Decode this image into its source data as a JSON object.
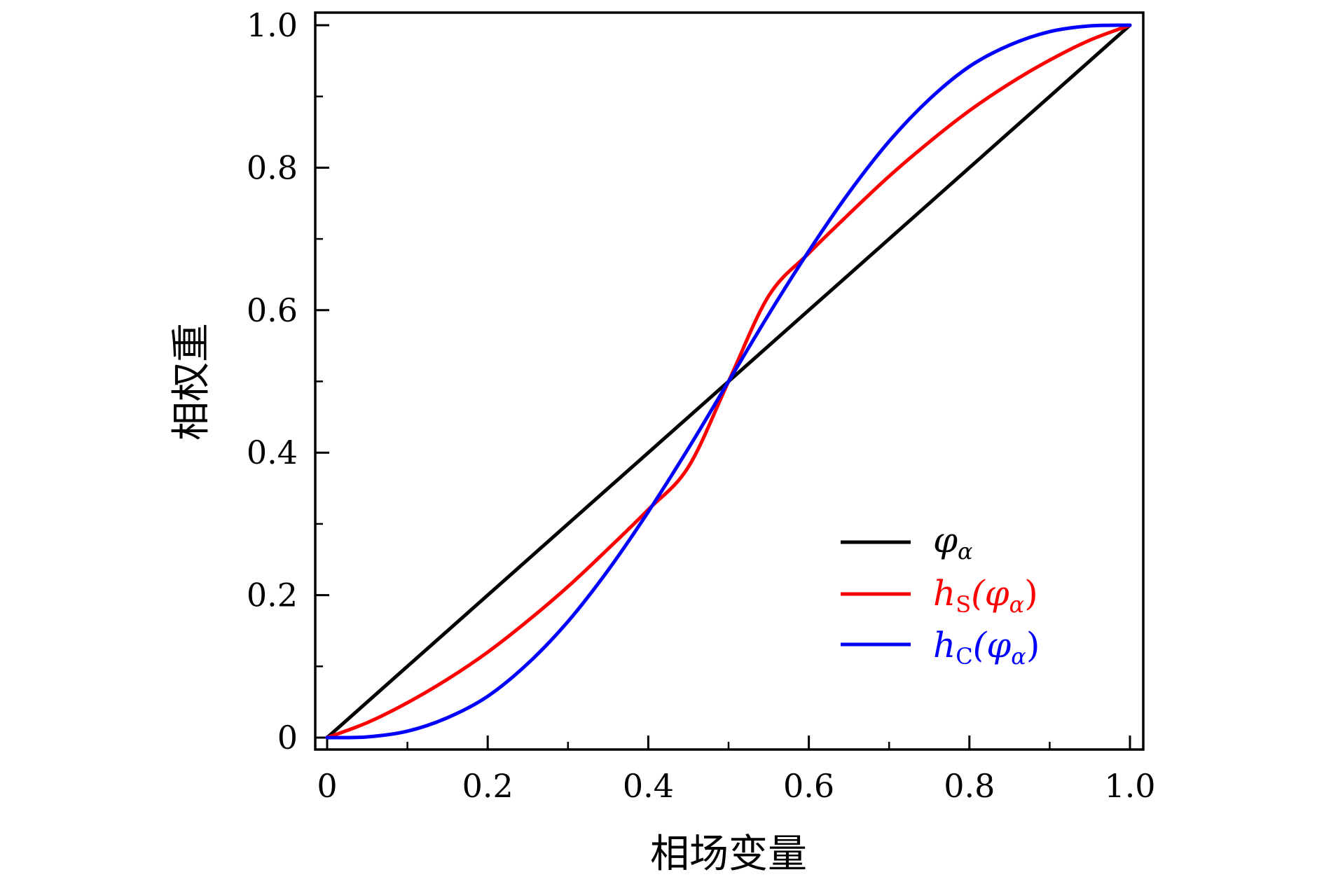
{
  "chart_data": {
    "type": "line",
    "title": "",
    "xlabel": "相场变量",
    "ylabel": "相权重",
    "xlim": [
      0,
      1
    ],
    "ylim": [
      0,
      1
    ],
    "x_major_ticks": [
      "0",
      "0.2",
      "0.4",
      "0.6",
      "0.8",
      "1.0"
    ],
    "y_major_ticks": [
      "0",
      "0.2",
      "0.4",
      "0.6",
      "0.8",
      "1.0"
    ],
    "x_minor_step": 0.1,
    "y_minor_step": 0.1,
    "grid": false,
    "legend_position": "bottom-right",
    "x": [
      0,
      0.05,
      0.1,
      0.15,
      0.2,
      0.25,
      0.3,
      0.35,
      0.4,
      0.45,
      0.5,
      0.55,
      0.6,
      0.65,
      0.7,
      0.75,
      0.8,
      0.85,
      0.9,
      0.95,
      1.0
    ],
    "series": [
      {
        "key": "phi",
        "name": "φ",
        "name_sub": "α",
        "color": "#000000",
        "values": [
          0,
          0.05,
          0.1,
          0.15,
          0.2,
          0.25,
          0.3,
          0.35,
          0.4,
          0.45,
          0.5,
          0.55,
          0.6,
          0.65,
          0.7,
          0.75,
          0.8,
          0.85,
          0.9,
          0.95,
          1.0
        ]
      },
      {
        "key": "hS",
        "name_prefix": "h",
        "name_prefix_sub": "S",
        "name_arg": "(φ",
        "name_arg_sub": "α",
        "name_close": ")",
        "color": "#ff0000",
        "values": [
          0,
          0.021,
          0.049,
          0.082,
          0.12,
          0.164,
          0.212,
          0.265,
          0.32,
          0.38,
          0.5,
          0.62,
          0.68,
          0.735,
          0.788,
          0.836,
          0.88,
          0.918,
          0.951,
          0.979,
          1.0
        ]
      },
      {
        "key": "hC",
        "name_prefix": "h",
        "name_prefix_sub": "C",
        "name_arg": "(φ",
        "name_arg_sub": "α",
        "name_close": ")",
        "color": "#0000ff",
        "values": [
          0,
          0.001,
          0.009,
          0.028,
          0.058,
          0.104,
          0.163,
          0.235,
          0.317,
          0.406,
          0.5,
          0.594,
          0.683,
          0.765,
          0.837,
          0.896,
          0.942,
          0.972,
          0.991,
          0.999,
          1.0
        ]
      }
    ]
  }
}
